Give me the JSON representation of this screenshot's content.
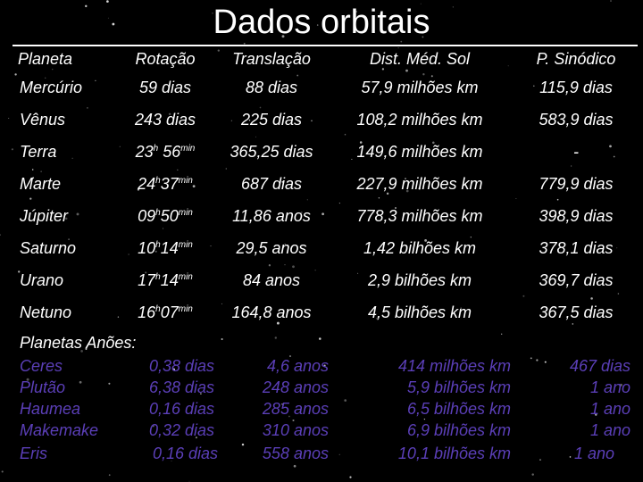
{
  "title": "Dados orbitais",
  "colors": {
    "background": "#000000",
    "text": "#ffffff",
    "dwarf_text": "#5b3fb8"
  },
  "headers": [
    "Planeta",
    "Rotação",
    "Translação",
    "Dist. Méd. Sol",
    "P. Sinódico"
  ],
  "planets": [
    {
      "name": "Mercúrio",
      "rot": "59 dias",
      "tra": "88 dias",
      "dist": "57,9 milhões km",
      "per": "115,9 dias"
    },
    {
      "name": "Vênus",
      "rot": "243 dias",
      "tra": "225 dias",
      "dist": "108,2 milhões km",
      "per": "583,9 dias"
    },
    {
      "name": "Terra",
      "rot_h": "23",
      "rot_min": "56",
      "tra": "365,25 dias",
      "dist": "149,6 milhões km",
      "per": "-"
    },
    {
      "name": "Marte",
      "rot_h": "24",
      "rot_min": "37",
      "tra": "687 dias",
      "dist": "227,9 milhões km",
      "per": "779,9 dias"
    },
    {
      "name": "Júpiter",
      "rot_h": "09",
      "rot_min": "50",
      "tra": "11,86 anos",
      "dist": "778,3 milhões km",
      "per": "398,9 dias"
    },
    {
      "name": "Saturno",
      "rot_h": "10",
      "rot_min": "14",
      "tra": "29,5 anos",
      "dist": "1,42 bilhões km",
      "per": "378,1 dias"
    },
    {
      "name": "Urano",
      "rot_h": "17",
      "rot_min": "14",
      "tra": "84 anos",
      "dist": "2,9 bilhões km",
      "per": "369,7 dias"
    },
    {
      "name": "Netuno",
      "rot_h": "16",
      "rot_min": "07",
      "tra": "164,8 anos",
      "dist": "4,5 bilhões km",
      "per": "367,5 dias"
    }
  ],
  "units": {
    "hour": "h",
    "minute": "min"
  },
  "dwarf_title": "Planetas Anões:",
  "dwarfs": [
    {
      "name": "Ceres",
      "rot": "0,38 dias",
      "tra": "4,6 anos",
      "dist": "414 milhões km",
      "per": "467 dias"
    },
    {
      "name": "Plutão",
      "rot": "6,38 dias",
      "tra": "248 anos",
      "dist": "5,9 bilhões km",
      "per": "1 ano"
    },
    {
      "name": "Haumea",
      "rot": "0,16 dias",
      "tra": "285 anos",
      "dist": "6,5 bilhões km",
      "per": "1 ano"
    },
    {
      "name": "Makemake",
      "rot": "0,32 dias",
      "tra": "310 anos",
      "dist": "6,9 bilhões km",
      "per": "1 ano"
    },
    {
      "name": "Eris",
      "rot": "0,16 dias",
      "tra": "558 anos",
      "dist": "10,1 bilhões km",
      "per": "1 ano"
    }
  ]
}
